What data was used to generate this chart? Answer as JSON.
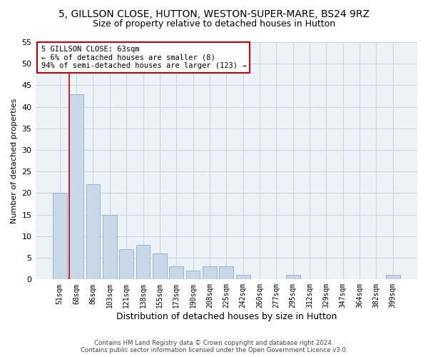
{
  "title_line1": "5, GILLSON CLOSE, HUTTON, WESTON-SUPER-MARE, BS24 9RZ",
  "title_line2": "Size of property relative to detached houses in Hutton",
  "xlabel": "Distribution of detached houses by size in Hutton",
  "ylabel": "Number of detached properties",
  "categories": [
    "51sqm",
    "68sqm",
    "86sqm",
    "103sqm",
    "121sqm",
    "138sqm",
    "155sqm",
    "173sqm",
    "190sqm",
    "208sqm",
    "225sqm",
    "242sqm",
    "260sqm",
    "277sqm",
    "295sqm",
    "312sqm",
    "329sqm",
    "347sqm",
    "364sqm",
    "382sqm",
    "399sqm"
  ],
  "values": [
    20,
    43,
    22,
    15,
    7,
    8,
    6,
    3,
    2,
    3,
    3,
    1,
    0,
    0,
    1,
    0,
    0,
    0,
    0,
    0,
    1
  ],
  "bar_color": "#c8d8e8",
  "bar_edge_color": "#8ab0cc",
  "vline_color": "#cc0000",
  "vline_x": 0.575,
  "annotation_text": "5 GILLSON CLOSE: 63sqm\n← 6% of detached houses are smaller (8)\n94% of semi-detached houses are larger (123) →",
  "annotation_box_color": "#ffffff",
  "annotation_box_edgecolor": "#cc0000",
  "ylim": [
    0,
    55
  ],
  "yticks": [
    0,
    5,
    10,
    15,
    20,
    25,
    30,
    35,
    40,
    45,
    50,
    55
  ],
  "footer_line1": "Contains HM Land Registry data © Crown copyright and database right 2024.",
  "footer_line2": "Contains public sector information licensed under the Open Government Licence v3.0.",
  "bg_color": "#ffffff",
  "plot_bg_color": "#edf2f7",
  "grid_color": "#c8d4de",
  "title_fontsize": 10,
  "subtitle_fontsize": 9,
  "ylabel_fontsize": 8,
  "xlabel_fontsize": 9,
  "tick_fontsize": 7,
  "bar_width": 0.85
}
